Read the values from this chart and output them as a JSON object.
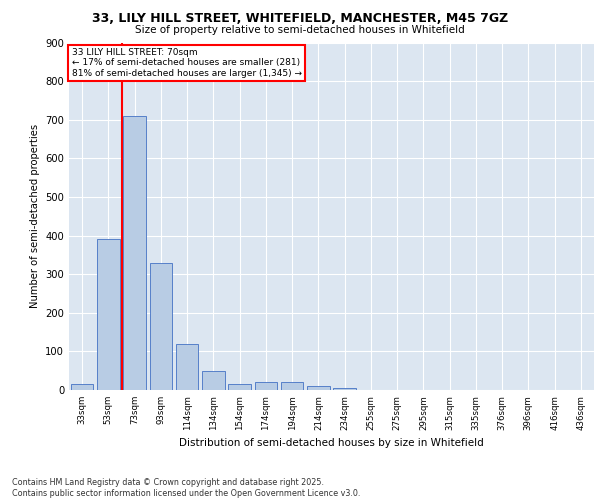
{
  "title1": "33, LILY HILL STREET, WHITEFIELD, MANCHESTER, M45 7GZ",
  "title2": "Size of property relative to semi-detached houses in Whitefield",
  "xlabel": "Distribution of semi-detached houses by size in Whitefield",
  "ylabel": "Number of semi-detached properties",
  "categories": [
    "33sqm",
    "53sqm",
    "73sqm",
    "93sqm",
    "114sqm",
    "134sqm",
    "154sqm",
    "174sqm",
    "194sqm",
    "214sqm",
    "234sqm",
    "255sqm",
    "275sqm",
    "295sqm",
    "315sqm",
    "335sqm",
    "376sqm",
    "396sqm",
    "416sqm",
    "436sqm"
  ],
  "values": [
    15,
    390,
    710,
    330,
    120,
    50,
    15,
    20,
    20,
    10,
    5,
    0,
    0,
    0,
    0,
    0,
    0,
    0,
    0,
    0
  ],
  "bar_color": "#b8cce4",
  "bar_edge_color": "#4472c4",
  "highlight_edge_color": "#ff0000",
  "annotation_title": "33 LILY HILL STREET: 70sqm",
  "annotation_line1": "← 17% of semi-detached houses are smaller (281)",
  "annotation_line2": "81% of semi-detached houses are larger (1,345) →",
  "footer": "Contains HM Land Registry data © Crown copyright and database right 2025.\nContains public sector information licensed under the Open Government Licence v3.0.",
  "plot_bg_color": "#dce6f1",
  "ylim": [
    0,
    900
  ],
  "yticks": [
    0,
    100,
    200,
    300,
    400,
    500,
    600,
    700,
    800,
    900
  ],
  "property_line_x": 1.5
}
